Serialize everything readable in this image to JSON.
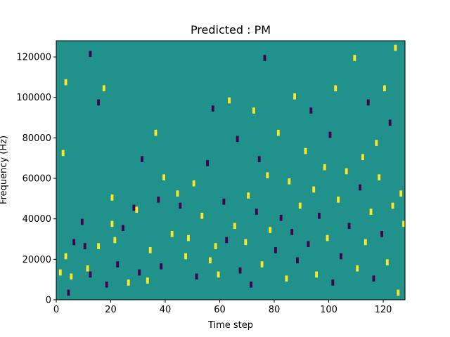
{
  "chart_data": {
    "type": "heatmap",
    "title": "Predicted : PM",
    "xlabel": "Time step",
    "ylabel": "Frequency (Hz)",
    "xlim": [
      0,
      128
    ],
    "ylim": [
      0,
      128000
    ],
    "x_ticks": [
      0,
      20,
      40,
      60,
      80,
      100,
      120
    ],
    "y_ticks": [
      0,
      20000,
      40000,
      60000,
      80000,
      100000,
      120000
    ],
    "x_tick_labels": [
      "0",
      "20",
      "40",
      "60",
      "80",
      "100",
      "120"
    ],
    "y_tick_labels": [
      "0",
      "20000",
      "40000",
      "60000",
      "80000",
      "100000",
      "120000"
    ],
    "grid": false,
    "colormap": "viridis",
    "background_value": 0,
    "colors": {
      "background": "#21918c",
      "positive": "#fde725",
      "negative": "#440154"
    },
    "cells": [
      {
        "t": 1,
        "f": 14,
        "v": 1
      },
      {
        "t": 2,
        "f": 73,
        "v": 1
      },
      {
        "t": 3,
        "f": 22,
        "v": 1
      },
      {
        "t": 3,
        "f": 108,
        "v": 1
      },
      {
        "t": 4,
        "f": 4,
        "v": -1
      },
      {
        "t": 5,
        "f": 12,
        "v": 1
      },
      {
        "t": 6,
        "f": 29,
        "v": -1
      },
      {
        "t": 9,
        "f": 39,
        "v": -1
      },
      {
        "t": 10,
        "f": 27,
        "v": -1
      },
      {
        "t": 11,
        "f": 16,
        "v": 1
      },
      {
        "t": 12,
        "f": 13,
        "v": -1
      },
      {
        "t": 12,
        "f": 122,
        "v": -1
      },
      {
        "t": 15,
        "f": 27,
        "v": 1
      },
      {
        "t": 15,
        "f": 98,
        "v": -1
      },
      {
        "t": 17,
        "f": 105,
        "v": 1
      },
      {
        "t": 18,
        "f": 8,
        "v": -1
      },
      {
        "t": 20,
        "f": 38,
        "v": 1
      },
      {
        "t": 20,
        "f": 51,
        "v": 1
      },
      {
        "t": 21,
        "f": 30,
        "v": 1
      },
      {
        "t": 22,
        "f": 18,
        "v": -1
      },
      {
        "t": 24,
        "f": 36,
        "v": -1
      },
      {
        "t": 26,
        "f": 9,
        "v": 1
      },
      {
        "t": 28,
        "f": 46,
        "v": -1
      },
      {
        "t": 29,
        "f": 45,
        "v": 1
      },
      {
        "t": 30,
        "f": 14,
        "v": -1
      },
      {
        "t": 31,
        "f": 70,
        "v": -1
      },
      {
        "t": 33,
        "f": 10,
        "v": 1
      },
      {
        "t": 34,
        "f": 25,
        "v": 1
      },
      {
        "t": 36,
        "f": 83,
        "v": 1
      },
      {
        "t": 37,
        "f": 50,
        "v": -1
      },
      {
        "t": 38,
        "f": 17,
        "v": -1
      },
      {
        "t": 39,
        "f": 61,
        "v": 1
      },
      {
        "t": 42,
        "f": 33,
        "v": 1
      },
      {
        "t": 44,
        "f": 53,
        "v": 1
      },
      {
        "t": 45,
        "f": 47,
        "v": -1
      },
      {
        "t": 47,
        "f": 22,
        "v": 1
      },
      {
        "t": 48,
        "f": 31,
        "v": 1
      },
      {
        "t": 50,
        "f": 58,
        "v": 1
      },
      {
        "t": 51,
        "f": 12,
        "v": -1
      },
      {
        "t": 53,
        "f": 42,
        "v": 1
      },
      {
        "t": 55,
        "f": 68,
        "v": -1
      },
      {
        "t": 56,
        "f": 20,
        "v": 1
      },
      {
        "t": 57,
        "f": 95,
        "v": -1
      },
      {
        "t": 58,
        "f": 27,
        "v": 1
      },
      {
        "t": 59,
        "f": 13,
        "v": 1
      },
      {
        "t": 61,
        "f": 49,
        "v": -1
      },
      {
        "t": 62,
        "f": 30,
        "v": -1
      },
      {
        "t": 63,
        "f": 99,
        "v": 1
      },
      {
        "t": 65,
        "f": 37,
        "v": 1
      },
      {
        "t": 66,
        "f": 80,
        "v": -1
      },
      {
        "t": 67,
        "f": 15,
        "v": -1
      },
      {
        "t": 69,
        "f": 29,
        "v": 1
      },
      {
        "t": 70,
        "f": 52,
        "v": 1
      },
      {
        "t": 71,
        "f": 8,
        "v": -1
      },
      {
        "t": 72,
        "f": 94,
        "v": 1
      },
      {
        "t": 73,
        "f": 44,
        "v": -1
      },
      {
        "t": 74,
        "f": 70,
        "v": -1
      },
      {
        "t": 75,
        "f": 18,
        "v": 1
      },
      {
        "t": 76,
        "f": 120,
        "v": -1
      },
      {
        "t": 77,
        "f": 62,
        "v": 1
      },
      {
        "t": 78,
        "f": 35,
        "v": 1
      },
      {
        "t": 80,
        "f": 25,
        "v": -1
      },
      {
        "t": 81,
        "f": 83,
        "v": 1
      },
      {
        "t": 82,
        "f": 41,
        "v": -1
      },
      {
        "t": 84,
        "f": 11,
        "v": 1
      },
      {
        "t": 85,
        "f": 59,
        "v": 1
      },
      {
        "t": 86,
        "f": 34,
        "v": -1
      },
      {
        "t": 87,
        "f": 101,
        "v": 1
      },
      {
        "t": 88,
        "f": 20,
        "v": -1
      },
      {
        "t": 89,
        "f": 47,
        "v": 1
      },
      {
        "t": 91,
        "f": 74,
        "v": 1
      },
      {
        "t": 92,
        "f": 28,
        "v": -1
      },
      {
        "t": 93,
        "f": 94,
        "v": -1
      },
      {
        "t": 94,
        "f": 55,
        "v": 1
      },
      {
        "t": 95,
        "f": 13,
        "v": 1
      },
      {
        "t": 96,
        "f": 42,
        "v": -1
      },
      {
        "t": 98,
        "f": 66,
        "v": 1
      },
      {
        "t": 99,
        "f": 31,
        "v": 1
      },
      {
        "t": 100,
        "f": 82,
        "v": -1
      },
      {
        "t": 101,
        "f": 9,
        "v": -1
      },
      {
        "t": 102,
        "f": 105,
        "v": 1
      },
      {
        "t": 103,
        "f": 50,
        "v": 1
      },
      {
        "t": 104,
        "f": 22,
        "v": -1
      },
      {
        "t": 106,
        "f": 64,
        "v": 1
      },
      {
        "t": 107,
        "f": 37,
        "v": -1
      },
      {
        "t": 109,
        "f": 120,
        "v": 1
      },
      {
        "t": 110,
        "f": 16,
        "v": 1
      },
      {
        "t": 111,
        "f": 56,
        "v": -1
      },
      {
        "t": 112,
        "f": 71,
        "v": 1
      },
      {
        "t": 113,
        "f": 29,
        "v": 1
      },
      {
        "t": 114,
        "f": 98,
        "v": -1
      },
      {
        "t": 115,
        "f": 44,
        "v": 1
      },
      {
        "t": 116,
        "f": 11,
        "v": -1
      },
      {
        "t": 117,
        "f": 78,
        "v": 1
      },
      {
        "t": 118,
        "f": 61,
        "v": 1
      },
      {
        "t": 119,
        "f": 33,
        "v": -1
      },
      {
        "t": 120,
        "f": 105,
        "v": 1
      },
      {
        "t": 121,
        "f": 19,
        "v": 1
      },
      {
        "t": 122,
        "f": 88,
        "v": -1
      },
      {
        "t": 123,
        "f": 47,
        "v": 1
      },
      {
        "t": 124,
        "f": 125,
        "v": 1
      },
      {
        "t": 125,
        "f": 4,
        "v": 1
      },
      {
        "t": 126,
        "f": 53,
        "v": 1
      },
      {
        "t": 127,
        "f": 38,
        "v": 1
      }
    ]
  }
}
